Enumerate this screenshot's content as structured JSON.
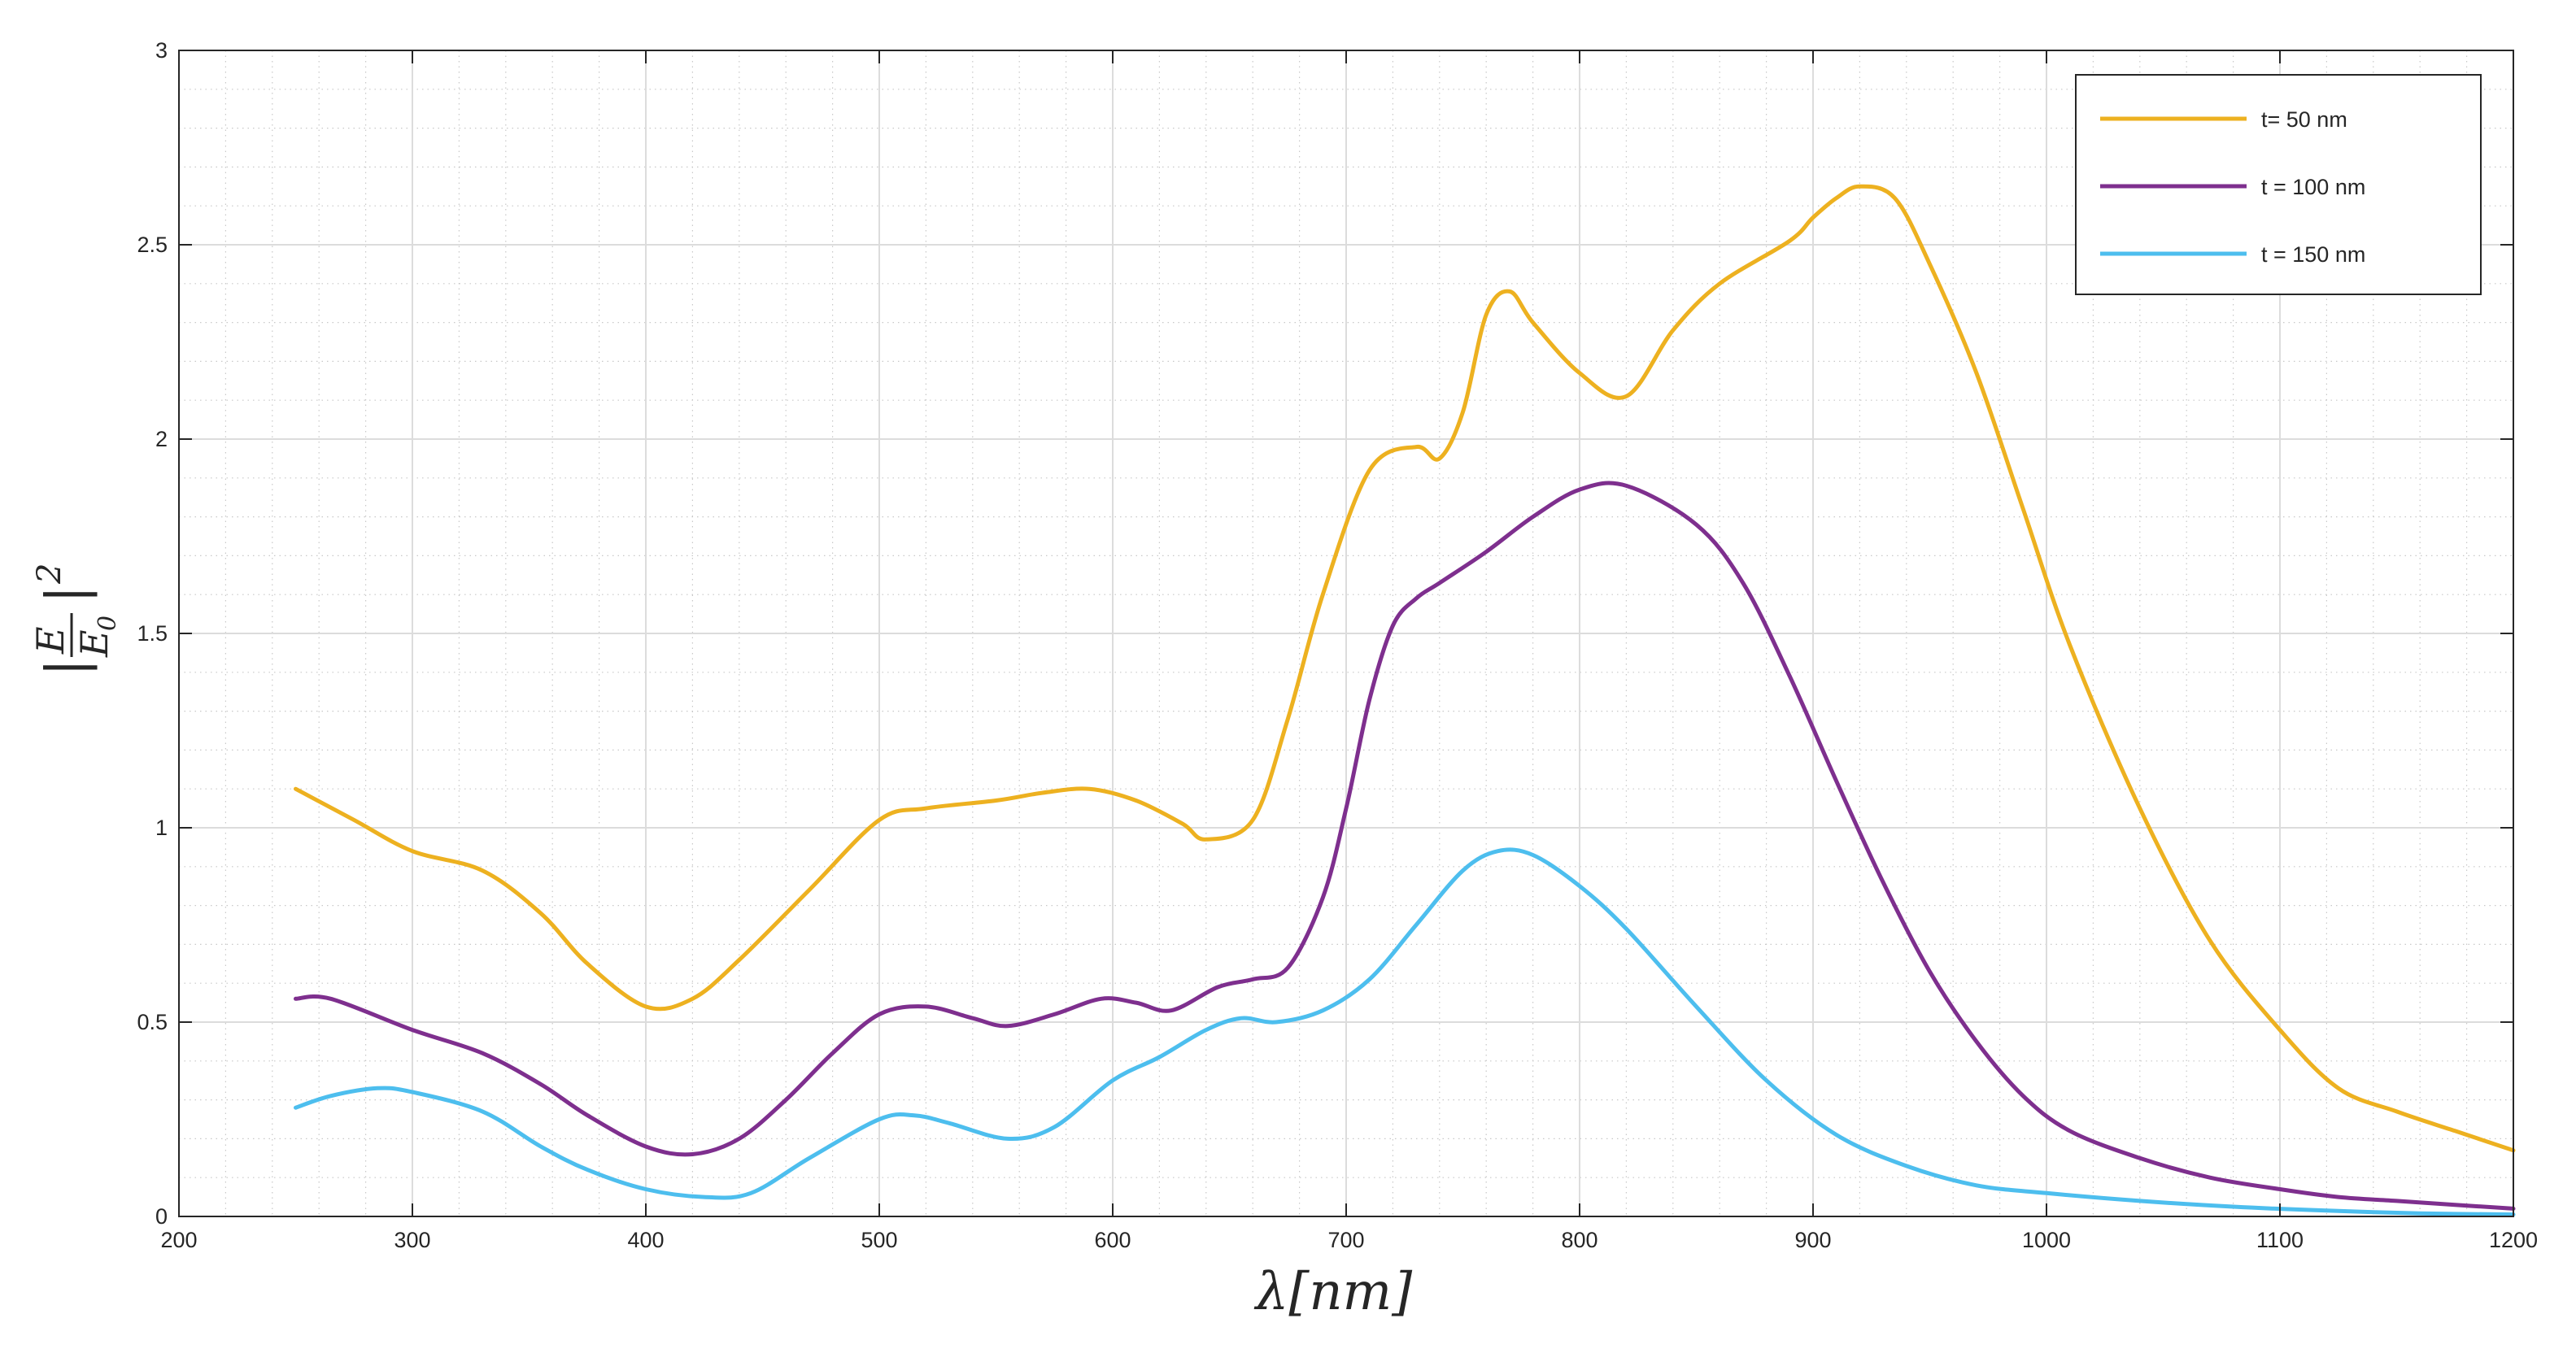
{
  "chart_data": {
    "type": "line",
    "title": "",
    "xlabel": "λ[nm]",
    "ylabel": "|E/E0|²",
    "ylabel_parts": {
      "bar_left": "|",
      "numerator": "E",
      "denominator": "E",
      "subscript": "0",
      "bar_right": "|",
      "exponent": "2"
    },
    "xlim": [
      200,
      1200
    ],
    "ylim": [
      0,
      3
    ],
    "xticks": [
      200,
      300,
      400,
      500,
      600,
      700,
      800,
      900,
      1000,
      1100,
      1200
    ],
    "yticks": [
      0,
      0.5,
      1,
      1.5,
      2,
      2.5,
      3
    ],
    "xtick_labels": [
      "200",
      "300",
      "400",
      "500",
      "600",
      "700",
      "800",
      "900",
      "1000",
      "1100",
      "1200"
    ],
    "ytick_labels": [
      "0",
      "0.5",
      "1",
      "1.5",
      "2",
      "2.5",
      "3"
    ],
    "grid": true,
    "minor_grid": true,
    "legend_position": "top-right",
    "series": [
      {
        "name": "t= 50 nm",
        "color": "#EDB120",
        "x": [
          250,
          275,
          300,
          330,
          355,
          375,
          400,
          420,
          440,
          470,
          500,
          520,
          550,
          570,
          590,
          610,
          630,
          640,
          660,
          675,
          690,
          710,
          730,
          740,
          750,
          760,
          770,
          780,
          800,
          820,
          840,
          860,
          890,
          900,
          910,
          920,
          935,
          950,
          970,
          990,
          1010,
          1040,
          1070,
          1100,
          1125,
          1150,
          1175,
          1200
        ],
        "y": [
          1.1,
          1.02,
          0.94,
          0.89,
          0.78,
          0.65,
          0.54,
          0.56,
          0.66,
          0.84,
          1.02,
          1.05,
          1.07,
          1.09,
          1.1,
          1.07,
          1.01,
          0.97,
          1.02,
          1.28,
          1.6,
          1.92,
          1.98,
          1.95,
          2.07,
          2.32,
          2.38,
          2.3,
          2.17,
          2.11,
          2.28,
          2.4,
          2.51,
          2.57,
          2.62,
          2.65,
          2.62,
          2.45,
          2.17,
          1.82,
          1.47,
          1.05,
          0.71,
          0.48,
          0.33,
          0.27,
          0.22,
          0.17
        ]
      },
      {
        "name": "t = 100 nm",
        "color": "#7E2F8E",
        "x": [
          250,
          265,
          300,
          330,
          355,
          375,
          400,
          420,
          440,
          460,
          480,
          500,
          520,
          540,
          555,
          575,
          595,
          610,
          625,
          645,
          660,
          675,
          690,
          700,
          710,
          720,
          730,
          740,
          760,
          780,
          800,
          820,
          850,
          870,
          890,
          910,
          930,
          950,
          970,
          990,
          1010,
          1040,
          1070,
          1100,
          1125,
          1150,
          1175,
          1200
        ],
        "y": [
          0.56,
          0.56,
          0.48,
          0.42,
          0.34,
          0.26,
          0.18,
          0.16,
          0.2,
          0.3,
          0.42,
          0.52,
          0.54,
          0.51,
          0.49,
          0.52,
          0.56,
          0.55,
          0.53,
          0.59,
          0.61,
          0.64,
          0.82,
          1.05,
          1.33,
          1.52,
          1.59,
          1.63,
          1.71,
          1.8,
          1.87,
          1.88,
          1.78,
          1.63,
          1.39,
          1.12,
          0.86,
          0.63,
          0.45,
          0.31,
          0.22,
          0.15,
          0.1,
          0.07,
          0.05,
          0.04,
          0.03,
          0.02
        ]
      },
      {
        "name": "t = 150 nm",
        "color": "#4DBEEE",
        "x": [
          250,
          265,
          285,
          300,
          330,
          355,
          375,
          400,
          425,
          445,
          470,
          500,
          515,
          530,
          555,
          575,
          600,
          620,
          640,
          655,
          670,
          690,
          710,
          730,
          750,
          765,
          780,
          800,
          820,
          850,
          880,
          910,
          940,
          970,
          1000,
          1040,
          1080,
          1120,
          1160,
          1200
        ],
        "y": [
          0.28,
          0.31,
          0.33,
          0.32,
          0.27,
          0.18,
          0.12,
          0.07,
          0.05,
          0.06,
          0.15,
          0.25,
          0.26,
          0.24,
          0.2,
          0.23,
          0.35,
          0.41,
          0.48,
          0.51,
          0.5,
          0.53,
          0.61,
          0.75,
          0.89,
          0.94,
          0.93,
          0.85,
          0.74,
          0.54,
          0.35,
          0.21,
          0.13,
          0.08,
          0.06,
          0.04,
          0.025,
          0.015,
          0.008,
          0.005
        ]
      }
    ]
  }
}
